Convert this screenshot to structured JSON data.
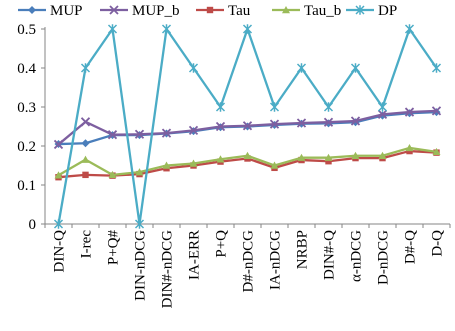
{
  "chart_data": {
    "type": "line",
    "title": "",
    "xlabel": "",
    "ylabel": "",
    "ylim": [
      0,
      0.5
    ],
    "yticks": [
      0,
      0.1,
      0.2,
      0.3,
      0.4,
      0.5
    ],
    "ytick_labels": [
      "0",
      "0.1",
      "0.2",
      "0.3",
      "0.4",
      "0.5"
    ],
    "grid": false,
    "legend_position": "top",
    "categories": [
      "DIN-Q",
      "I-rec",
      "P+Q#",
      "DIN-nDCG",
      "DIN#-nDCG",
      "IA-ERR",
      "P+Q",
      "D#-nDCG",
      "IA-nDCG",
      "NRBP",
      "DIN#-Q",
      "α-nDCG",
      "D-nDCG",
      "D#-Q",
      "D-Q"
    ],
    "series": [
      {
        "name": "MUP",
        "color": "#4A7EBB",
        "marker": "diamond",
        "values": [
          0.205,
          0.207,
          0.228,
          0.228,
          0.232,
          0.238,
          0.248,
          0.25,
          0.254,
          0.257,
          0.258,
          0.261,
          0.278,
          0.284,
          0.287
        ]
      },
      {
        "name": "MUP_b",
        "color": "#7D5FA0",
        "marker": "x",
        "values": [
          0.204,
          0.262,
          0.229,
          0.23,
          0.233,
          0.24,
          0.25,
          0.252,
          0.256,
          0.259,
          0.261,
          0.264,
          0.281,
          0.287,
          0.29
        ]
      },
      {
        "name": "Tau",
        "color": "#BE4B48",
        "marker": "square",
        "values": [
          0.12,
          0.126,
          0.124,
          0.128,
          0.143,
          0.15,
          0.16,
          0.168,
          0.144,
          0.164,
          0.161,
          0.169,
          0.169,
          0.187,
          0.183
        ]
      },
      {
        "name": "Tau_b",
        "color": "#9BBB59",
        "marker": "triangle",
        "values": [
          0.125,
          0.165,
          0.126,
          0.133,
          0.15,
          0.155,
          0.166,
          0.175,
          0.15,
          0.17,
          0.17,
          0.175,
          0.175,
          0.195,
          0.185
        ]
      },
      {
        "name": "DP",
        "color": "#4BACC6",
        "marker": "asterisk",
        "values": [
          0.0,
          0.4,
          0.5,
          0.0,
          0.5,
          0.4,
          0.3,
          0.5,
          0.3,
          0.4,
          0.3,
          0.4,
          0.3,
          0.5,
          0.4
        ]
      }
    ]
  }
}
